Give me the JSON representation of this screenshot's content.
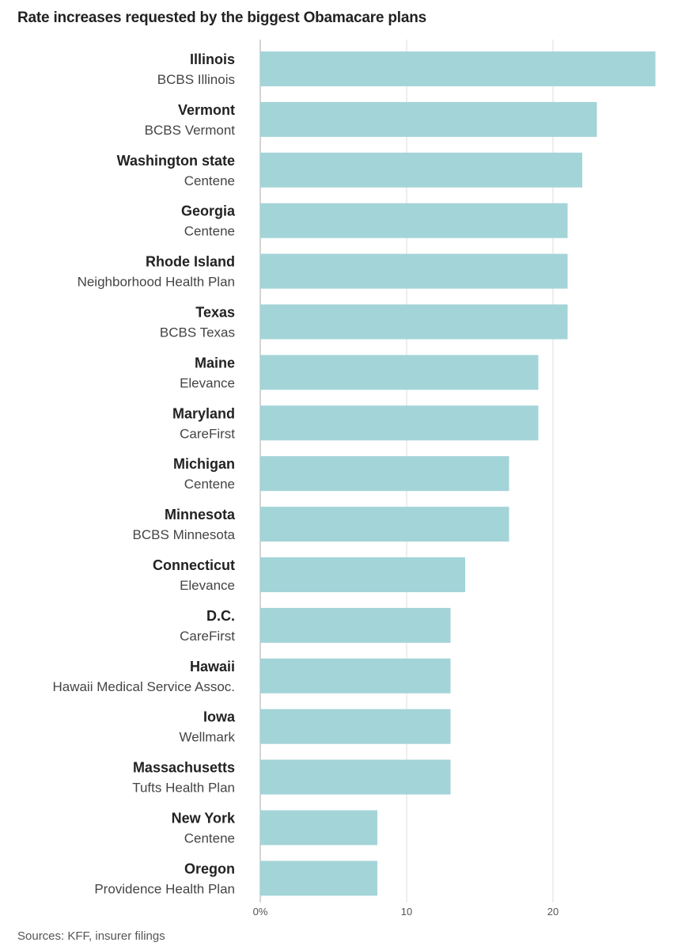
{
  "title": "Rate increases requested by the biggest Obamacare plans",
  "source": "Sources: KFF, insurer filings",
  "colors": {
    "bar": "#a3d4d8",
    "grid": "#dddddd",
    "axis": "#aaaaaa"
  },
  "chart_data": {
    "type": "bar",
    "orientation": "horizontal",
    "title": "Rate increases requested by the biggest Obamacare plans",
    "xlabel": "",
    "ylabel": "",
    "xlim": [
      0,
      27
    ],
    "grid": true,
    "x_ticks": [
      {
        "value": 0,
        "label": "0%"
      },
      {
        "value": 10,
        "label": "10"
      },
      {
        "value": 20,
        "label": "20"
      }
    ],
    "categories": [
      {
        "state": "Illinois",
        "plan": "BCBS Illinois",
        "value": 27
      },
      {
        "state": "Vermont",
        "plan": "BCBS Vermont",
        "value": 23
      },
      {
        "state": "Washington state",
        "plan": "Centene",
        "value": 22
      },
      {
        "state": "Georgia",
        "plan": "Centene",
        "value": 21
      },
      {
        "state": "Rhode Island",
        "plan": "Neighborhood Health Plan",
        "value": 21
      },
      {
        "state": "Texas",
        "plan": "BCBS Texas",
        "value": 21
      },
      {
        "state": "Maine",
        "plan": "Elevance",
        "value": 19
      },
      {
        "state": "Maryland",
        "plan": "CareFirst",
        "value": 19
      },
      {
        "state": "Michigan",
        "plan": "Centene",
        "value": 17
      },
      {
        "state": "Minnesota",
        "plan": "BCBS Minnesota",
        "value": 17
      },
      {
        "state": "Connecticut",
        "plan": "Elevance",
        "value": 14
      },
      {
        "state": "D.C.",
        "plan": "CareFirst",
        "value": 13
      },
      {
        "state": "Hawaii",
        "plan": "Hawaii Medical Service Assoc.",
        "value": 13
      },
      {
        "state": "Iowa",
        "plan": "Wellmark",
        "value": 13
      },
      {
        "state": "Massachusetts",
        "plan": "Tufts Health Plan",
        "value": 13
      },
      {
        "state": "New York",
        "plan": "Centene",
        "value": 8
      },
      {
        "state": "Oregon",
        "plan": "Providence Health Plan",
        "value": 8
      }
    ]
  }
}
